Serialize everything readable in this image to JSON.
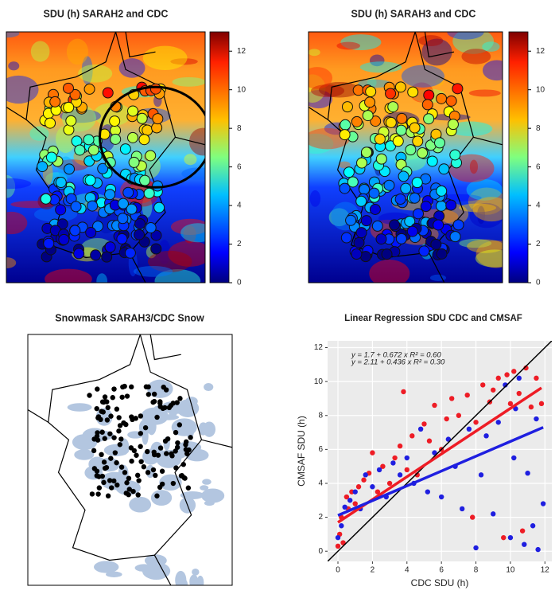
{
  "chart_data": [
    {
      "type": "map",
      "title": "SDU (h) SARAH2 and CDC",
      "clim": [
        0,
        13
      ],
      "cticks": [
        0,
        2,
        4,
        6,
        8,
        10,
        12
      ],
      "colorbar": true
    },
    {
      "type": "map",
      "title": "SDU (h) SARAH3 and CDC",
      "clim": [
        0,
        13
      ],
      "cticks": [
        0,
        2,
        4,
        6,
        8,
        10,
        12
      ],
      "colorbar": true
    },
    {
      "type": "snowmask",
      "title": "Snowmask SARAH3/CDC Snow"
    },
    {
      "type": "scatter",
      "title": "Linear Regression SDU CDC and CMSAF",
      "xlabel": "CDC SDU (h)",
      "ylabel": "CMSAF SDU (h)",
      "xlim": [
        -0.6,
        12.4
      ],
      "ylim": [
        -0.6,
        12.4
      ],
      "xticks": [
        0,
        2,
        4,
        6,
        8,
        10,
        12
      ],
      "yticks": [
        0,
        2,
        4,
        6,
        8,
        10,
        12
      ],
      "grid": true,
      "annotations": [
        "y = 1.7 + 0.672 x   R² = 0.60",
        "y = 2.11 + 0.436 x   R² = 0.30"
      ],
      "identity_line": true,
      "series": [
        {
          "color": "#ee1c25",
          "x": [
            0,
            0.1,
            0.2,
            0.3,
            0.5,
            0.6,
            0.8,
            1,
            1.2,
            1.5,
            1.8,
            2,
            2.3,
            2.6,
            3,
            3.3,
            3.6,
            3.8,
            4,
            4.3,
            4.6,
            5,
            5.3,
            5.6,
            6,
            6.3,
            6.6,
            7,
            7.5,
            7.8,
            8,
            8.4,
            8.8,
            9,
            9.3,
            9.6,
            9.8,
            10,
            10.2,
            10.5,
            10.7,
            10.9,
            11.2,
            11.5,
            11.8
          ],
          "values": [
            0.3,
            1,
            2,
            0.5,
            3.2,
            2.5,
            3.5,
            2.8,
            3.8,
            4.2,
            4.6,
            5.8,
            3.5,
            5,
            4,
            5.5,
            6.2,
            9.4,
            4.8,
            6.8,
            4.5,
            7.5,
            6.5,
            8.6,
            6,
            7.8,
            9,
            8,
            9.2,
            2,
            7.6,
            9.8,
            8.8,
            9.5,
            10.2,
            0.8,
            10.4,
            8.7,
            10.6,
            9.3,
            1.2,
            10.8,
            8.5,
            10.2,
            8.7
          ],
          "intercept": 1.7,
          "slope": 0.672
        },
        {
          "color": "#1f1fe0",
          "x": [
            0,
            0.2,
            0.4,
            0.7,
            1,
            1.3,
            1.6,
            2,
            2.4,
            2.8,
            3.2,
            3.6,
            4,
            4.4,
            4.8,
            5.2,
            5.6,
            6,
            6.4,
            6.8,
            7.2,
            7.6,
            8,
            8.3,
            8.6,
            9,
            9.3,
            9.7,
            10,
            10.2,
            10.5,
            10.8,
            11,
            11.3,
            11.6,
            11.9,
            11.5,
            10.3
          ],
          "values": [
            0.8,
            1.5,
            2.6,
            3,
            3.5,
            2.5,
            4.5,
            3.8,
            4.8,
            3.2,
            5.2,
            4.5,
            5.5,
            4,
            7.2,
            3.5,
            5.8,
            3.2,
            6.6,
            5,
            2.5,
            7.2,
            0.2,
            4.5,
            6.8,
            2.2,
            7.6,
            9.8,
            0.8,
            5.5,
            10.2,
            0.4,
            4.6,
            1.5,
            0.1,
            2.8,
            7.8,
            8.4
          ],
          "intercept": 2.11,
          "slope": 0.436
        }
      ]
    }
  ]
}
